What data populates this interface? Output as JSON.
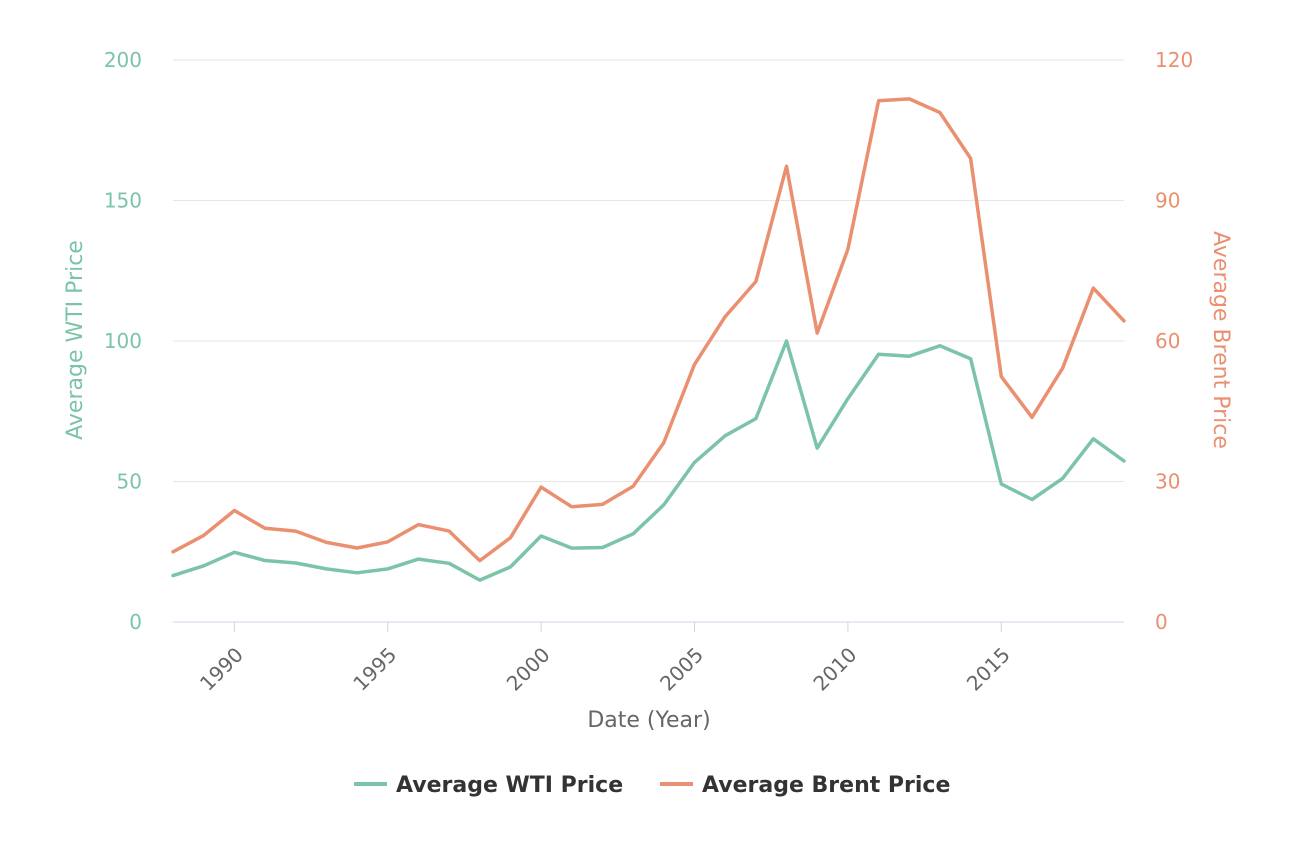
{
  "chart_data": {
    "type": "line",
    "x": [
      1988,
      1989,
      1990,
      1991,
      1992,
      1993,
      1994,
      1995,
      1996,
      1997,
      1998,
      1999,
      2000,
      2001,
      2002,
      2003,
      2004,
      2005,
      2006,
      2007,
      2008,
      2009,
      2010,
      2011,
      2012,
      2013,
      2014,
      2015,
      2016,
      2017,
      2018,
      2019
    ],
    "xlabel": "Date (Year)",
    "x_ticks": [
      "1990",
      "1995",
      "2000",
      "2005",
      "2010",
      "2015"
    ],
    "xlim": [
      1988,
      2019
    ],
    "y_left": {
      "label": "Average WTI Price",
      "lim": [
        0,
        200
      ],
      "ticks": [
        "0",
        "50",
        "100",
        "150",
        "200"
      ]
    },
    "y_right": {
      "label": "Average Brent Price",
      "lim": [
        0,
        120
      ],
      "ticks": [
        "0",
        "30",
        "60",
        "90",
        "120"
      ]
    },
    "series": [
      {
        "name": "Average WTI Price",
        "axis": "left",
        "color": "#7cc4a8",
        "values": [
          16.5,
          20.0,
          24.8,
          21.9,
          21.0,
          18.9,
          17.5,
          18.9,
          22.4,
          20.9,
          14.9,
          19.6,
          30.6,
          26.3,
          26.5,
          31.4,
          41.7,
          56.8,
          66.3,
          72.4,
          100.0,
          61.9,
          79.5,
          95.3,
          94.6,
          98.3,
          93.7,
          49.1,
          43.6,
          51.1,
          65.2,
          57.3
        ]
      },
      {
        "name": "Average Brent Price",
        "axis": "right",
        "color": "#ea9070",
        "values": [
          15.0,
          18.5,
          23.8,
          20.0,
          19.4,
          17.0,
          15.8,
          17.1,
          20.8,
          19.4,
          13.1,
          18.0,
          28.8,
          24.6,
          25.1,
          29.0,
          38.3,
          55.0,
          65.2,
          72.7,
          97.3,
          61.7,
          79.6,
          111.3,
          111.7,
          108.8,
          99.0,
          52.4,
          43.7,
          54.2,
          71.3,
          64.3
        ]
      }
    ],
    "legend": "bottom-center",
    "grid": true
  }
}
